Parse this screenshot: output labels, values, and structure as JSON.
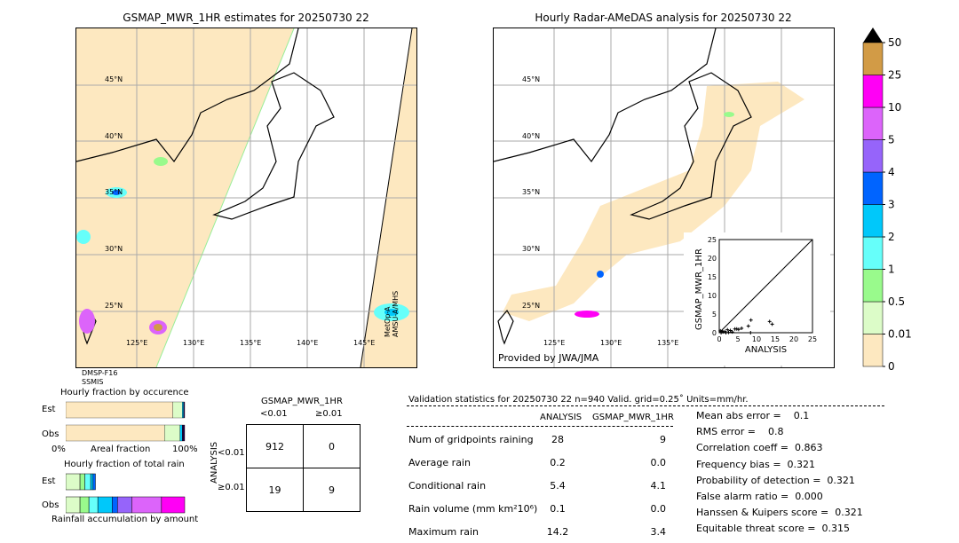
{
  "left_map": {
    "title": "GSMAP_MWR_1HR estimates for 20250730 22",
    "lat_labels": [
      "45°N",
      "40°N",
      "35°N",
      "30°N",
      "25°N"
    ],
    "lon_labels": [
      "125°E",
      "130°E",
      "135°E",
      "140°E",
      "145°E"
    ],
    "sensor_left": "DMSP-F16",
    "sensor_left2": "SSMIS",
    "sensor_right": "MetOp-A",
    "sensor_right2": "AMSU-A/MHS"
  },
  "right_map": {
    "title": "Hourly Radar-AMeDAS analysis for 20250730 22",
    "lat_labels": [
      "45°N",
      "40°N",
      "35°N",
      "30°N",
      "25°N"
    ],
    "lon_labels": [
      "125°E",
      "130°E",
      "135°E"
    ],
    "credit": "Provided by JWA/JMA"
  },
  "colorbar": {
    "ticks": [
      "0",
      "0.01",
      "0.5",
      "1",
      "2",
      "3",
      "4",
      "5",
      "10",
      "25",
      "50"
    ],
    "colors": [
      "#fde8c0",
      "#dcfcc8",
      "#99fa8c",
      "#66fffa",
      "#00c8fa",
      "#0064ff",
      "#9664fa",
      "#dc64fa",
      "#ff00f5",
      "#d29b46"
    ]
  },
  "chart_data": {
    "type": "scatter",
    "xlabel": "ANALYSIS",
    "ylabel": "GSMAP_MWR_1HR",
    "xlim": [
      0,
      25
    ],
    "ylim": [
      0,
      25
    ],
    "ticks": [
      "0",
      "5",
      "10",
      "15",
      "20",
      "25"
    ],
    "points": [
      [
        8.5,
        3.4
      ],
      [
        13.5,
        3.0
      ],
      [
        14.2,
        2.3
      ],
      [
        7.8,
        1.8
      ],
      [
        6,
        1.2
      ],
      [
        4.2,
        1.0
      ],
      [
        4.7,
        1.0
      ],
      [
        5.2,
        0.9
      ],
      [
        3,
        0.6
      ],
      [
        2.2,
        0.8
      ],
      [
        8.4,
        0
      ],
      [
        1,
        0.2
      ],
      [
        0.5,
        0
      ],
      [
        1.5,
        0.3
      ],
      [
        2.5,
        0.1
      ],
      [
        0.3,
        0.5
      ],
      [
        0.8,
        0.4
      ],
      [
        1.8,
        0
      ],
      [
        3.5,
        0.2
      ]
    ]
  },
  "occurrence": {
    "title": "Hourly fraction by occurence",
    "est_label": "Est",
    "obs_label": "Obs",
    "x0": "0%",
    "xmid": "Areal fraction",
    "x1": "100%",
    "est": [
      0.9,
      0.08,
      0.01,
      0.01
    ],
    "obs": [
      0.83,
      0.13,
      0.02,
      0.02
    ]
  },
  "rainfrac": {
    "title": "Hourly fraction of total rain",
    "est_label": "Est",
    "obs_label": "Obs",
    "footer": "Rainfall accumulation by amount",
    "est": [
      [
        0.12,
        "#dcfcc8"
      ],
      [
        0.04,
        "#99fa8c"
      ],
      [
        0.05,
        "#66fffa"
      ],
      [
        0.02,
        "#00c8fa"
      ],
      [
        0.02,
        "#0064ff"
      ]
    ],
    "obs": [
      [
        0.12,
        "#dcfcc8"
      ],
      [
        0.075,
        "#99fa8c"
      ],
      [
        0.075,
        "#66fffa"
      ],
      [
        0.12,
        "#00c8fa"
      ],
      [
        0.045,
        "#0064ff"
      ],
      [
        0.12,
        "#9664fa"
      ],
      [
        0.25,
        "#dc64fa"
      ],
      [
        0.195,
        "#ff00f5"
      ]
    ]
  },
  "contingency": {
    "title": "GSMAP_MWR_1HR",
    "col1": "<0.01",
    "col2": "≥0.01",
    "row_axis": "ANALYSIS",
    "row1": "<0.01",
    "row2": "≥0.01",
    "cells": [
      "912",
      "0",
      "19",
      "9"
    ]
  },
  "stats": {
    "header": "Validation statistics for 20250730 22  n=940 Valid. grid=0.25˚ Units=mm/hr.",
    "col1": "ANALYSIS",
    "col2": "GSMAP_MWR_1HR",
    "rows": [
      {
        "label": "Num of gridpoints raining",
        "a": "28",
        "b": "9"
      },
      {
        "label": "Average rain",
        "a": "0.2",
        "b": "0.0"
      },
      {
        "label": "Conditional rain",
        "a": "5.4",
        "b": "4.1"
      },
      {
        "label": "Rain volume (mm km²10⁶)",
        "a": "0.1",
        "b": "0.0"
      },
      {
        "label": "Maximum rain",
        "a": "14.2",
        "b": "3.4"
      }
    ],
    "scores": [
      "Mean abs error =    0.1",
      "RMS error =    0.8",
      "Correlation coeff =  0.863",
      "Frequency bias =  0.321",
      "Probability of detection =  0.321",
      "False alarm ratio =  0.000",
      "Hanssen & Kuipers score =  0.321",
      "Equitable threat score =  0.315"
    ]
  }
}
